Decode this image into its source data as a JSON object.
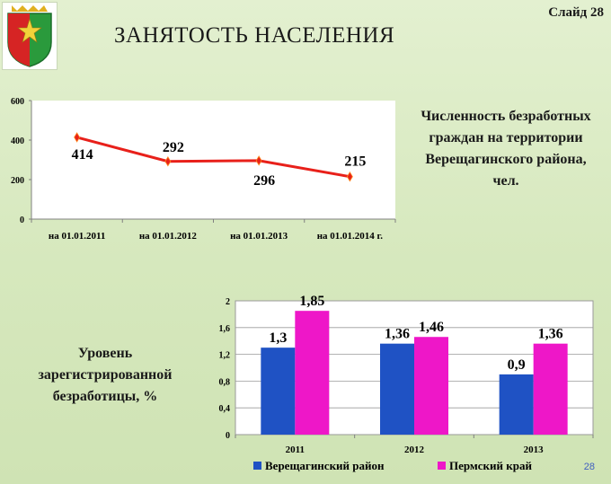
{
  "slide": {
    "title": "ЗАНЯТОСТЬ НАСЕЛЕНИЯ",
    "slide_label": "Слайд 28",
    "page_number": "28",
    "logo_icon": "coat-of-arms-icon",
    "label_unemployed": "Численность безработных граждан на территории Верещагинского района, чел.",
    "label_rate": "Уровень зарегистрированной безработицы, %"
  },
  "chart_data": [
    {
      "type": "line",
      "title": "",
      "categories": [
        "на 01.01.2011",
        "на 01.01.2012",
        "на 01.01.2013",
        "на 01.01.2014 г."
      ],
      "series": [
        {
          "values": [
            414,
            292,
            296,
            215
          ],
          "color": "#e8201a"
        }
      ],
      "data_labels": [
        "414",
        "292",
        "296",
        "215"
      ],
      "ylim": [
        0,
        600
      ],
      "yticks": [
        "0",
        "200",
        "400",
        "600"
      ],
      "grid": false
    },
    {
      "type": "bar",
      "title": "",
      "categories": [
        "2011",
        "2012",
        "2013"
      ],
      "series": [
        {
          "name": "Верещагинский район",
          "values": [
            1.3,
            1.36,
            0.9
          ],
          "labels": [
            "1,3",
            "1,36",
            "0,9"
          ],
          "color": "#1f52c4"
        },
        {
          "name": "Пермский край",
          "values": [
            1.85,
            1.46,
            1.36
          ],
          "labels": [
            "1,85",
            "1,46",
            "1,36"
          ],
          "color": "#ee17c8"
        }
      ],
      "ylim": [
        0,
        2
      ],
      "yticks": [
        "0",
        "0,4",
        "0,8",
        "1,2",
        "1,6",
        "2"
      ],
      "legend": "bottom",
      "grid": true
    }
  ]
}
